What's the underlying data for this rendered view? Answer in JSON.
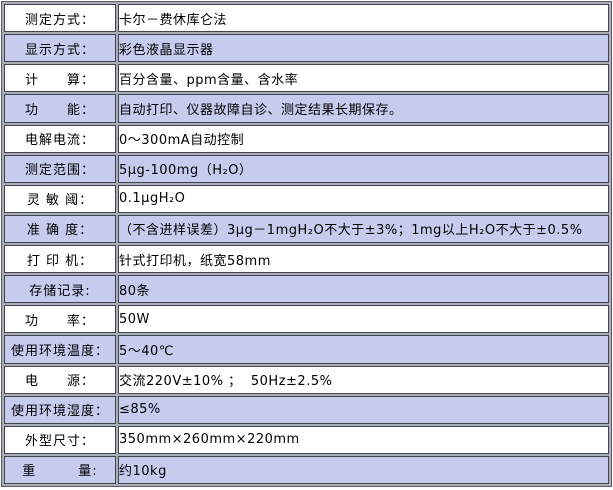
{
  "spec": {
    "rows": [
      {
        "label": "测定方式：",
        "value": "卡尔－费休库仑法"
      },
      {
        "label": "显示方式：",
        "value": "彩色液晶显示器"
      },
      {
        "label": "计　　算：",
        "value": "百分含量、ppm含量、含水率"
      },
      {
        "label": "功　　能：",
        "value": "自动打印、仪器故障自诊、测定结果长期保存。"
      },
      {
        "label": "电解电流：",
        "value": "0～300mA自动控制"
      },
      {
        "label": "测定范围：",
        "value": "5μg-100mg（H₂O）"
      },
      {
        "label": "灵 敏 阈：",
        "value": "0.1μgH₂O"
      },
      {
        "label": "准 确 度：",
        "value": "（不含进样误差）3μg－1mgH₂O不大于±3%；1mg以上H₂O不大于±0.5%"
      },
      {
        "label": "打 印 机：",
        "value": "针式打印机，纸宽58mm"
      },
      {
        "label": "存储记录:",
        "value": "80条"
      },
      {
        "label": "功　　率：",
        "value": "50W"
      },
      {
        "label": "使用环境温度：",
        "value": "5～40℃"
      },
      {
        "label": "电　　源：",
        "value": "交流220V±10% ；  50Hz±2.5%"
      },
      {
        "label": "使用环境湿度：",
        "value": "≤85%"
      },
      {
        "label": "外型尺寸：",
        "value": "350mm×260mm×220mm"
      },
      {
        "label": "重　　　量:",
        "value": "约10kg"
      }
    ],
    "colors": {
      "row_highlight": "#c7cbee",
      "row_plain": "#ffffff",
      "grid_dark": "#43434d",
      "grid_gap": "#a9aeb9",
      "frame": "#5a5a64"
    }
  }
}
